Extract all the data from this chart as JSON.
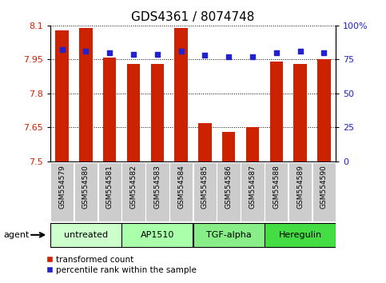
{
  "title": "GDS4361 / 8074748",
  "samples": [
    "GSM554579",
    "GSM554580",
    "GSM554581",
    "GSM554582",
    "GSM554583",
    "GSM554584",
    "GSM554585",
    "GSM554586",
    "GSM554587",
    "GSM554588",
    "GSM554589",
    "GSM554590"
  ],
  "bar_values": [
    8.08,
    8.09,
    7.96,
    7.93,
    7.93,
    8.09,
    7.67,
    7.63,
    7.65,
    7.94,
    7.93,
    7.95
  ],
  "percentile_values": [
    82,
    81,
    80,
    79,
    79,
    81,
    78,
    77,
    77,
    80,
    81,
    80
  ],
  "ylim_left": [
    7.5,
    8.1
  ],
  "ylim_right": [
    0,
    100
  ],
  "yticks_left": [
    7.5,
    7.65,
    7.8,
    7.95,
    8.1
  ],
  "ytick_labels_left": [
    "7.5",
    "7.65",
    "7.8",
    "7.95",
    "8.1"
  ],
  "yticks_right": [
    0,
    25,
    50,
    75,
    100
  ],
  "ytick_labels_right": [
    "0",
    "25",
    "50",
    "75",
    "100%"
  ],
  "bar_color": "#cc2200",
  "dot_color": "#2222cc",
  "agent_label": "agent",
  "groups": [
    {
      "label": "untreated",
      "start": 0,
      "end": 2,
      "color": "#ccffcc"
    },
    {
      "label": "AP1510",
      "start": 3,
      "end": 5,
      "color": "#aaffaa"
    },
    {
      "label": "TGF-alpha",
      "start": 6,
      "end": 8,
      "color": "#88ee88"
    },
    {
      "label": "Heregulin",
      "start": 9,
      "end": 11,
      "color": "#44dd44"
    }
  ],
  "legend_bar_label": "transformed count",
  "legend_dot_label": "percentile rank within the sample",
  "left_tick_color": "#cc2200",
  "right_tick_color": "#2222cc",
  "sample_box_color": "#cccccc",
  "title_fontsize": 11,
  "tick_fontsize": 8,
  "sample_fontsize": 6.5,
  "group_fontsize": 8,
  "legend_fontsize": 7.5
}
